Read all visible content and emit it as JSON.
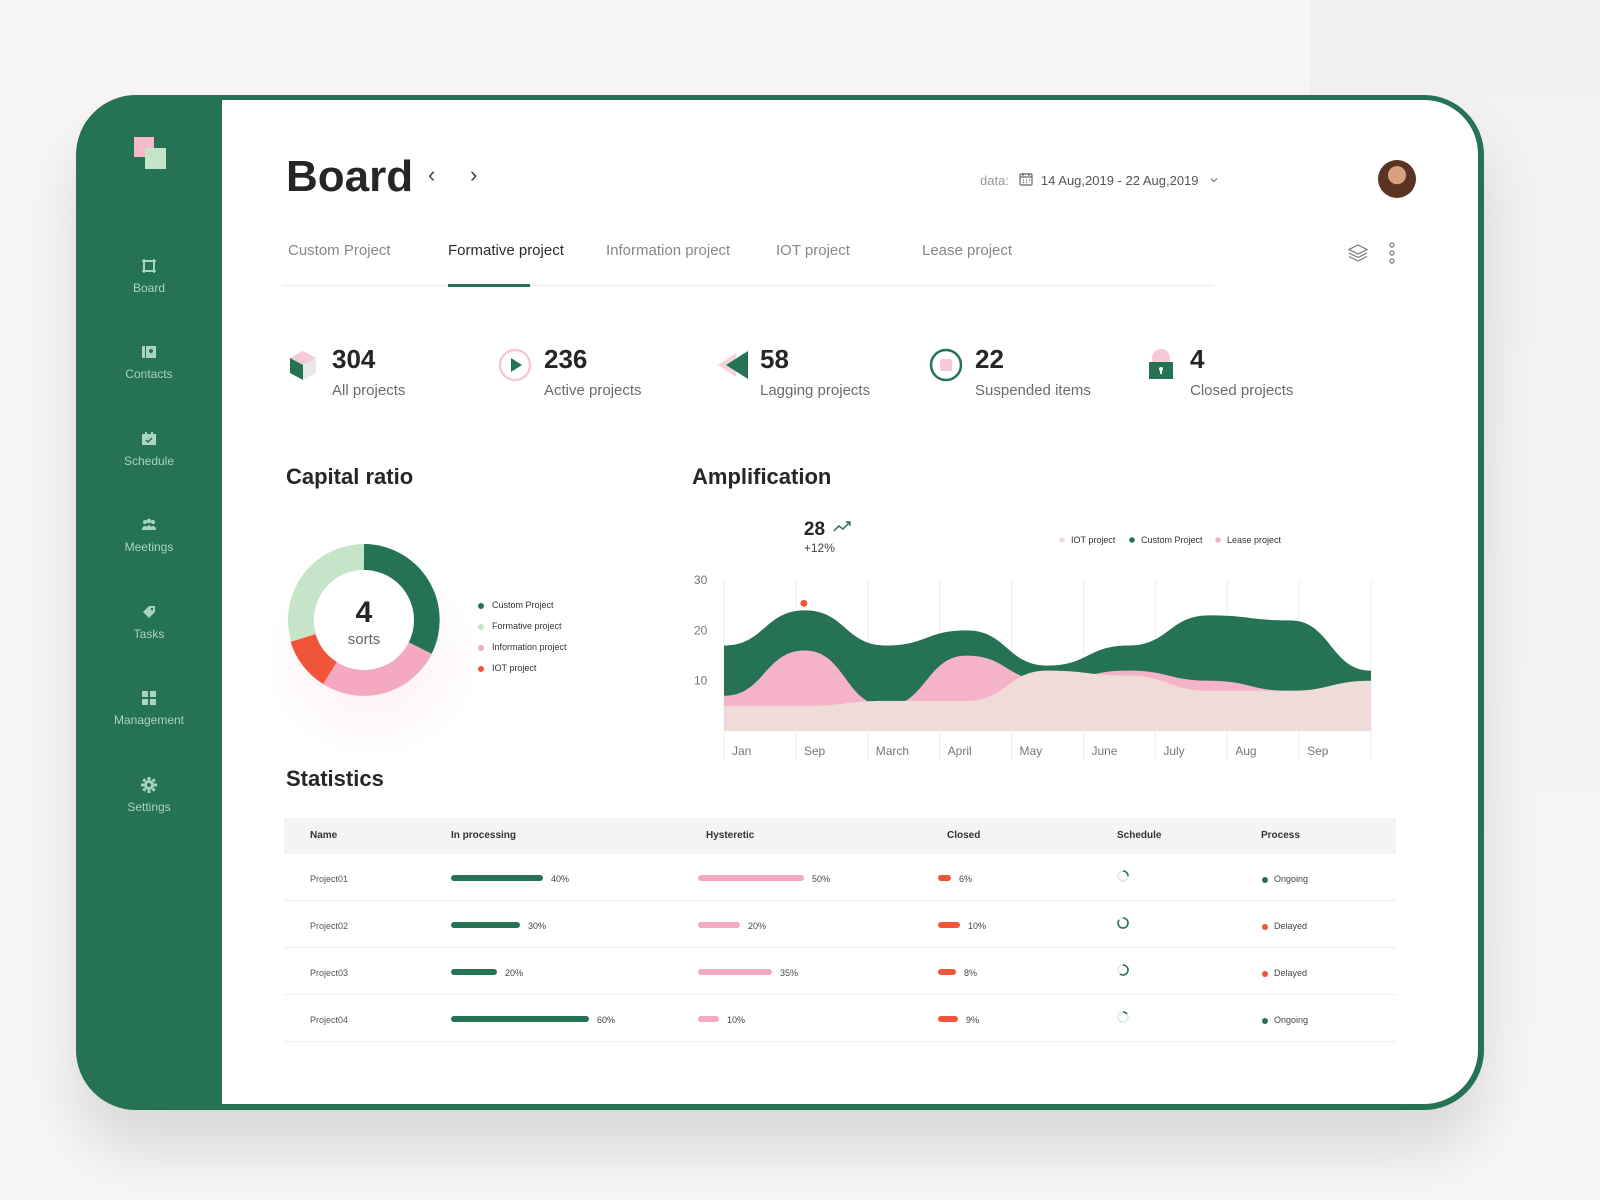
{
  "colors": {
    "brand": "#257254",
    "pink": "#f4a9c0",
    "light_green": "#c6e5c8",
    "red": "#f0553a",
    "beige": "#efdcd8"
  },
  "sidebar": {
    "items": [
      {
        "label": "Board",
        "icon": "board-icon"
      },
      {
        "label": "Contacts",
        "icon": "contacts-icon"
      },
      {
        "label": "Schedule",
        "icon": "calendar-icon"
      },
      {
        "label": "Meetings",
        "icon": "people-icon"
      },
      {
        "label": "Tasks",
        "icon": "tag-icon"
      },
      {
        "label": "Management",
        "icon": "grid-icon"
      },
      {
        "label": "Settings",
        "icon": "gear-icon"
      }
    ]
  },
  "header": {
    "title": "Board",
    "prev": "‹",
    "next": "›",
    "date_label": "data:",
    "date_range": "14 Aug,2019 - 22 Aug,2019"
  },
  "tabs": [
    {
      "label": "Custom Project"
    },
    {
      "label": "Formative project"
    },
    {
      "label": "Information  project"
    },
    {
      "label": "IOT project"
    },
    {
      "label": "Lease project"
    }
  ],
  "stats": [
    {
      "value": "304",
      "label": "All projects"
    },
    {
      "value": "236",
      "label": "Active projects"
    },
    {
      "value": "58",
      "label": "Lagging projects"
    },
    {
      "value": "22",
      "label": "Suspended items"
    },
    {
      "value": "4",
      "label": "Closed projects"
    }
  ],
  "capital": {
    "title": "Capital ratio",
    "center_value": "4",
    "center_label": "sorts",
    "legend": [
      "Custom Project",
      "Formative project",
      "Information  project",
      "IOT project"
    ]
  },
  "chart_data": {
    "type": "area",
    "title": "Amplification",
    "x": [
      "Jan",
      "Sep",
      "March",
      "April",
      "May",
      "June",
      "July",
      "Aug",
      "Sep"
    ],
    "y_ticks": [
      "30",
      "20",
      "10"
    ],
    "ylim": [
      0,
      35
    ],
    "series": [
      {
        "name": "IOT project",
        "values": [
          5,
          5,
          6,
          6,
          12,
          11,
          8,
          8,
          10
        ]
      },
      {
        "name": "Custom Project",
        "values": [
          17,
          24,
          17,
          20,
          13,
          17,
          23,
          22,
          12
        ]
      },
      {
        "name": "Lease project",
        "values": [
          7,
          16,
          5,
          15,
          10,
          12,
          10,
          8,
          9
        ]
      }
    ],
    "highlight": {
      "value": "28",
      "change": "+12%"
    },
    "legend_position": "top-right"
  },
  "statistics": {
    "title": "Statistics",
    "headers": [
      "Name",
      "In processing",
      "Hysteretic",
      "Closed",
      "Schedule",
      "Process"
    ],
    "rows": [
      {
        "name": "Project01",
        "processing": 40,
        "processing_label": "40%",
        "hysteretic": 50,
        "hysteretic_label": "50%",
        "closed": 6,
        "closed_label": "6%",
        "schedule": 0.25,
        "process": "Ongoing"
      },
      {
        "name": "Project02",
        "processing": 30,
        "processing_label": "30%",
        "hysteretic": 20,
        "hysteretic_label": "20%",
        "closed": 10,
        "closed_label": "10%",
        "schedule": 0.85,
        "process": "Delayed"
      },
      {
        "name": "Project03",
        "processing": 20,
        "processing_label": "20%",
        "hysteretic": 35,
        "hysteretic_label": "35%",
        "closed": 8,
        "closed_label": "8%",
        "schedule": 0.6,
        "process": "Delayed"
      },
      {
        "name": "Project04",
        "processing": 60,
        "processing_label": "60%",
        "hysteretic": 10,
        "hysteretic_label": "10%",
        "closed": 9,
        "closed_label": "9%",
        "schedule": 0.15,
        "process": "Ongoing"
      }
    ]
  }
}
